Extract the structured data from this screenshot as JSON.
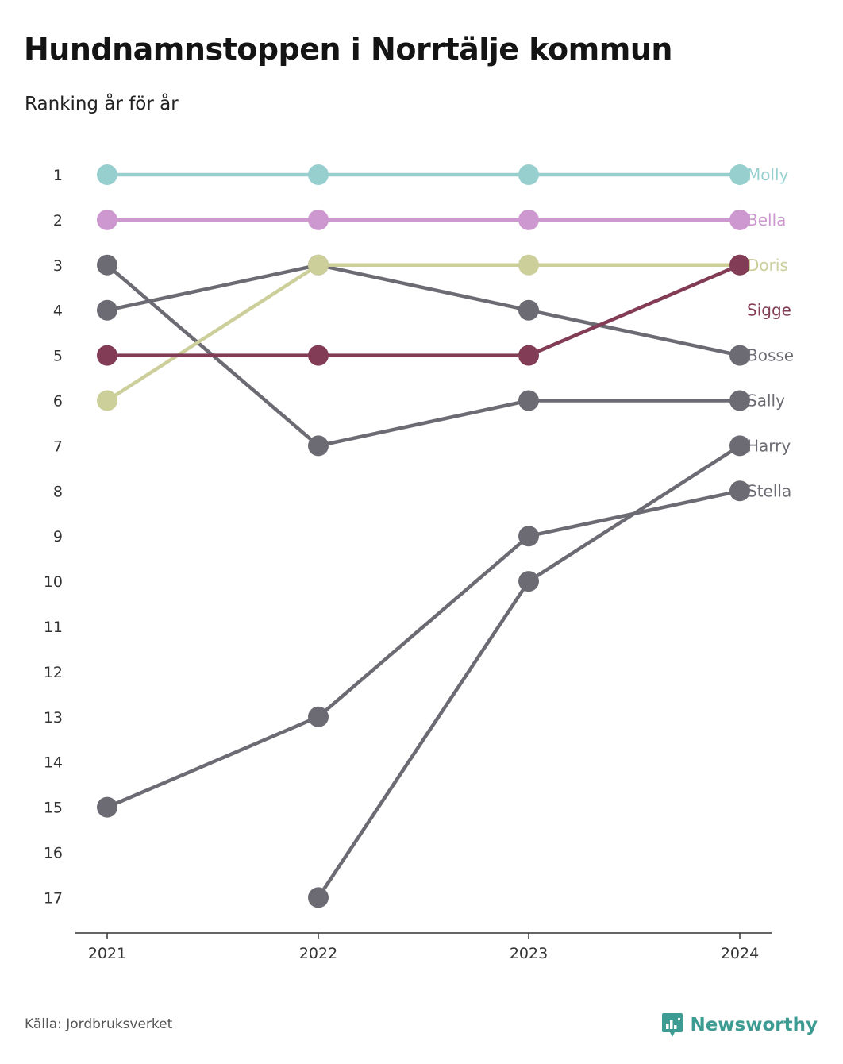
{
  "title": "Hundnamnstoppen i Norrtälje kommun",
  "subtitle": "Ranking år för år",
  "source": "Källa: Jordbruksverket",
  "brand": "Newsworthy",
  "colors": {
    "brand": "#3c9b92",
    "axis": "#333333",
    "tick_text": "#333333"
  },
  "chart_data": {
    "type": "line",
    "chart_kind": "bump",
    "x": [
      "2021",
      "2022",
      "2023",
      "2024"
    ],
    "y_ticks": [
      1,
      2,
      3,
      4,
      5,
      6,
      7,
      8,
      9,
      10,
      11,
      12,
      13,
      14,
      15,
      16,
      17
    ],
    "ylim": [
      1,
      17
    ],
    "y_inverted": true,
    "grid": false,
    "series": [
      {
        "name": "Molly",
        "values": [
          1,
          1,
          1,
          1
        ],
        "color": "#97cfcf"
      },
      {
        "name": "Bella",
        "values": [
          2,
          2,
          2,
          2
        ],
        "color": "#cd98d0"
      },
      {
        "name": "Doris",
        "values": [
          6,
          3,
          3,
          3
        ],
        "color": "#cccf9a"
      },
      {
        "name": "Sigge",
        "values": [
          5,
          5,
          5,
          3
        ],
        "color": "#833c55"
      },
      {
        "name": "Bosse",
        "values": [
          4,
          3,
          4,
          5
        ],
        "color": "#6c6b73"
      },
      {
        "name": "Sally",
        "values": [
          3,
          7,
          6,
          6
        ],
        "color": "#6c6b73"
      },
      {
        "name": "Harry",
        "values": [
          null,
          17,
          10,
          7
        ],
        "color": "#6c6b73"
      },
      {
        "name": "Stella",
        "values": [
          15,
          13,
          9,
          8
        ],
        "color": "#6c6b73"
      }
    ]
  }
}
